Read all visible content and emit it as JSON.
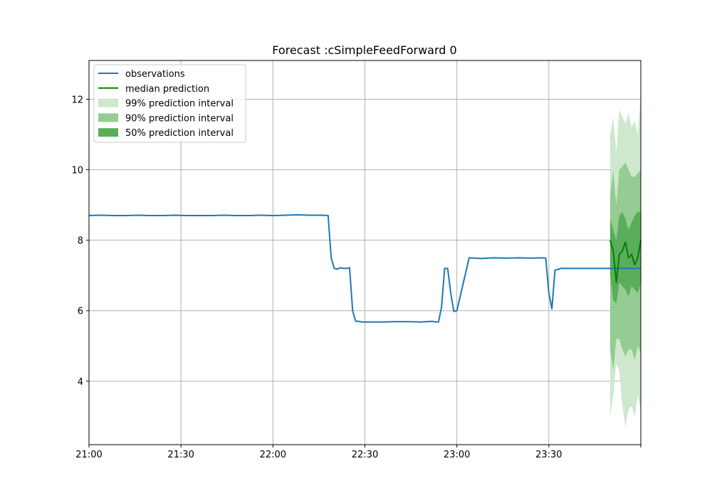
{
  "chart_data": {
    "type": "line",
    "title": "Forecast :cSimpleFeedForward 0",
    "xlabel": "",
    "ylabel": "",
    "x_start": "21:00",
    "x_end": "24:00",
    "xlim": [
      "21:00",
      "24:00"
    ],
    "ylim": [
      2.2,
      13.1
    ],
    "x_ticks": [
      "21:00",
      "21:30",
      "22:00",
      "22:30",
      "23:00",
      "23:30"
    ],
    "y_ticks": [
      4,
      6,
      8,
      10,
      12
    ],
    "grid": true,
    "legend_position": "top-left",
    "colors": {
      "observations": "#1f77b4",
      "median": "#008000",
      "p99": "#cde8cd",
      "p90": "#94cc94",
      "p50": "#5aae5a"
    },
    "series": [
      {
        "name": "observations",
        "x": [
          "21:00",
          "21:04",
          "21:08",
          "21:12",
          "21:16",
          "21:20",
          "21:24",
          "21:28",
          "21:32",
          "21:36",
          "21:40",
          "21:44",
          "21:48",
          "21:52",
          "21:56",
          "22:00",
          "22:04",
          "22:08",
          "22:12",
          "22:16",
          "22:18",
          "22:19",
          "22:20",
          "22:21",
          "22:22",
          "22:23",
          "22:24",
          "22:25",
          "22:26",
          "22:27",
          "22:28",
          "22:29",
          "22:32",
          "22:36",
          "22:40",
          "22:44",
          "22:48",
          "22:52",
          "22:53",
          "22:54",
          "22:55",
          "22:56",
          "22:57",
          "22:58",
          "22:59",
          "23:00",
          "23:04",
          "23:08",
          "23:12",
          "23:16",
          "23:20",
          "23:24",
          "23:28",
          "23:29",
          "23:30",
          "23:31",
          "23:32",
          "23:34",
          "23:36",
          "23:40",
          "23:44",
          "23:48",
          "23:52",
          "23:56",
          "24:00"
        ],
        "y": [
          8.7,
          8.71,
          8.7,
          8.7,
          8.71,
          8.7,
          8.7,
          8.71,
          8.7,
          8.7,
          8.7,
          8.71,
          8.7,
          8.7,
          8.71,
          8.7,
          8.71,
          8.72,
          8.71,
          8.71,
          8.7,
          7.5,
          7.2,
          7.18,
          7.22,
          7.2,
          7.2,
          7.22,
          6.0,
          5.7,
          5.7,
          5.68,
          5.68,
          5.68,
          5.69,
          5.69,
          5.68,
          5.7,
          5.68,
          5.68,
          6.1,
          7.2,
          7.2,
          6.5,
          5.98,
          6.0,
          7.5,
          7.48,
          7.5,
          7.49,
          7.5,
          7.49,
          7.5,
          7.49,
          6.5,
          6.05,
          7.15,
          7.2,
          7.2,
          7.2,
          7.2,
          7.2,
          7.2,
          7.2,
          7.2
        ]
      },
      {
        "name": "median prediction",
        "x": [
          "23:50",
          "23:51",
          "23:52",
          "23:53",
          "23:54",
          "23:55",
          "23:56",
          "23:57",
          "23:58",
          "23:59",
          "24:00"
        ],
        "y": [
          8.0,
          7.7,
          6.8,
          7.6,
          7.7,
          7.95,
          7.5,
          7.6,
          7.3,
          7.5,
          8.0
        ]
      }
    ],
    "intervals": [
      {
        "name": "99% prediction interval",
        "x": [
          "23:50",
          "23:51",
          "23:52",
          "23:53",
          "23:54",
          "23:55",
          "23:56",
          "23:57",
          "23:58",
          "23:59",
          "24:00"
        ],
        "lower": [
          3.0,
          3.6,
          4.5,
          4.3,
          3.3,
          2.7,
          3.2,
          3.3,
          3.0,
          3.6,
          3.2
        ],
        "upper": [
          11.0,
          11.5,
          10.5,
          11.7,
          11.5,
          11.3,
          11.6,
          11.2,
          11.4,
          11.0,
          12.1
        ]
      },
      {
        "name": "90% prediction interval",
        "x": [
          "23:50",
          "23:51",
          "23:52",
          "23:53",
          "23:54",
          "23:55",
          "23:56",
          "23:57",
          "23:58",
          "23:59",
          "24:00"
        ],
        "lower": [
          4.9,
          4.3,
          5.2,
          5.2,
          4.9,
          4.7,
          4.9,
          4.9,
          4.6,
          5.0,
          4.8
        ],
        "upper": [
          9.3,
          10.0,
          9.0,
          10.0,
          10.1,
          10.2,
          10.0,
          9.8,
          9.8,
          9.9,
          10.0
        ]
      },
      {
        "name": "50% prediction interval",
        "x": [
          "23:50",
          "23:51",
          "23:52",
          "23:53",
          "23:54",
          "23:55",
          "23:56",
          "23:57",
          "23:58",
          "23:59",
          "24:00"
        ],
        "lower": [
          7.0,
          6.3,
          6.2,
          6.8,
          6.7,
          6.6,
          6.4,
          6.7,
          6.6,
          6.5,
          6.8
        ],
        "upper": [
          8.6,
          8.3,
          8.0,
          8.7,
          8.8,
          8.6,
          8.3,
          8.5,
          8.7,
          8.8,
          8.8
        ]
      }
    ],
    "legend": [
      {
        "label": "observations",
        "kind": "line",
        "color_key": "observations"
      },
      {
        "label": "median prediction",
        "kind": "line",
        "color_key": "median"
      },
      {
        "label": "99% prediction interval",
        "kind": "patch",
        "color_key": "p99"
      },
      {
        "label": "90% prediction interval",
        "kind": "patch",
        "color_key": "p90"
      },
      {
        "label": "50% prediction interval",
        "kind": "patch",
        "color_key": "p50"
      }
    ]
  }
}
